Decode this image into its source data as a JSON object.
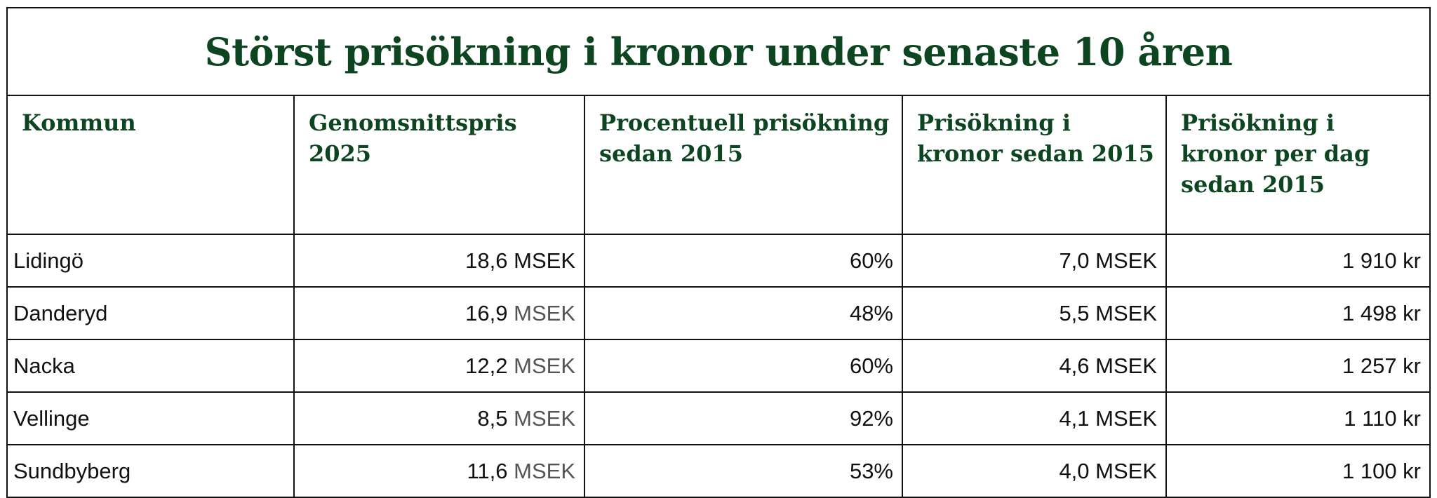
{
  "title": "Störst prisökning i kronor under senaste 10 åren",
  "headers": [
    "Kommun",
    "Genomsnittspris 2025",
    "Procentuell prisökning sedan 2015",
    "Prisökning i kronor sedan 2015",
    "Prisökning i kronor per dag sedan 2015"
  ],
  "rows": [
    {
      "kommun": "Lidingö",
      "pris_num": "18,6",
      "pris_unit": "MSEK",
      "procent": "60%",
      "okning": "7,0 MSEK",
      "per_dag": "1 910 kr"
    },
    {
      "kommun": "Danderyd",
      "pris_num": "16,9",
      "pris_unit": "MSEK",
      "procent": "48%",
      "okning": "5,5 MSEK",
      "per_dag": "1 498 kr"
    },
    {
      "kommun": "Nacka",
      "pris_num": "12,2",
      "pris_unit": "MSEK",
      "procent": "60%",
      "okning": "4,6 MSEK",
      "per_dag": "1 257 kr"
    },
    {
      "kommun": "Vellinge",
      "pris_num": "8,5",
      "pris_unit": "MSEK",
      "procent": "92%",
      "okning": "4,1 MSEK",
      "per_dag": "1 110 kr"
    },
    {
      "kommun": "Sundbyberg",
      "pris_num": "11,6",
      "pris_unit": "MSEK",
      "procent": "53%",
      "okning": "4,0 MSEK",
      "per_dag": "1 100 kr"
    }
  ],
  "colors": {
    "heading": "#0d4521",
    "border": "#111111",
    "unit_gray": "#555555"
  }
}
